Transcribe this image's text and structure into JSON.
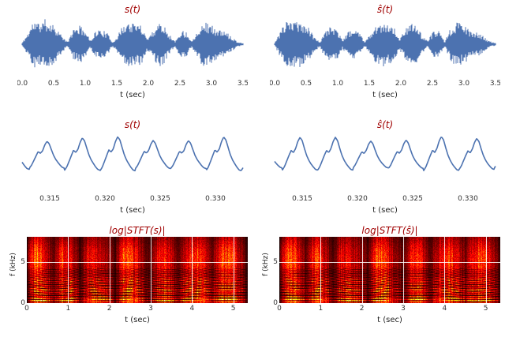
{
  "colors": {
    "waveform_blue": "#4C72B0",
    "title_red": "#a00000",
    "tick_gray": "#333333",
    "background": "#ffffff",
    "spectrogram_colormap": "hot"
  },
  "chart_data": [
    {
      "id": "waveform_s",
      "type": "waveform",
      "title": "s(t)",
      "xlabel": "t (sec)",
      "xlim": [
        0.0,
        3.5
      ],
      "xtick_values": [
        0.0,
        0.5,
        1.0,
        1.5,
        2.0,
        2.5,
        3.0,
        3.5
      ],
      "xtick_labels": [
        "0.0",
        "0.5",
        "1.0",
        "1.5",
        "2.0",
        "2.5",
        "3.0",
        "3.5"
      ],
      "envelope": [
        0.05,
        0.45,
        0.95,
        0.85,
        1.0,
        0.9,
        0.7,
        0.35,
        0.08,
        0.6,
        0.75,
        0.65,
        0.15,
        0.55,
        0.6,
        0.45,
        0.08,
        0.4,
        0.85,
        0.9,
        0.8,
        0.85,
        0.25,
        0.5,
        0.9,
        0.85,
        0.4,
        0.1,
        0.55,
        0.5,
        0.12,
        0.6,
        0.9,
        0.85,
        0.65,
        0.55,
        0.5,
        0.3,
        0.1,
        0.04
      ],
      "seed": 11
    },
    {
      "id": "waveform_s_hat",
      "type": "waveform",
      "title": "ŝ(t)",
      "xlabel": "t (sec)",
      "xlim": [
        0.0,
        3.5
      ],
      "xtick_values": [
        0.0,
        0.5,
        1.0,
        1.5,
        2.0,
        2.5,
        3.0,
        3.5
      ],
      "xtick_labels": [
        "0.0",
        "0.5",
        "1.0",
        "1.5",
        "2.0",
        "2.5",
        "3.0",
        "3.5"
      ],
      "envelope": [
        0.06,
        0.5,
        0.9,
        0.88,
        1.0,
        0.85,
        0.65,
        0.3,
        0.1,
        0.62,
        0.72,
        0.6,
        0.18,
        0.5,
        0.62,
        0.42,
        0.1,
        0.45,
        0.82,
        0.92,
        0.78,
        0.8,
        0.22,
        0.55,
        0.88,
        0.8,
        0.38,
        0.12,
        0.5,
        0.52,
        0.1,
        0.62,
        0.88,
        0.82,
        0.68,
        0.5,
        0.48,
        0.28,
        0.12,
        0.05
      ],
      "seed": 23
    },
    {
      "id": "zoom_s",
      "type": "line",
      "title": "s(t)",
      "xlabel": "t (sec)",
      "xlim": [
        0.3125,
        0.3325
      ],
      "xtick_values": [
        0.315,
        0.32,
        0.325,
        0.33
      ],
      "xtick_labels": [
        "0.315",
        "0.320",
        "0.325",
        "0.330"
      ],
      "period": 0.0032,
      "t0": 0.31315,
      "period_shape": [
        -0.62,
        -0.45,
        -0.18,
        0.1,
        0.38,
        0.28,
        0.42,
        0.78,
        1.0,
        0.86,
        0.5,
        0.15,
        -0.1,
        -0.28,
        -0.45,
        -0.58
      ],
      "seed": 5
    },
    {
      "id": "zoom_s_hat",
      "type": "line",
      "title": "ŝ(t)",
      "xlabel": "t (sec)",
      "xlim": [
        0.3125,
        0.3325
      ],
      "xtick_values": [
        0.315,
        0.32,
        0.325,
        0.33
      ],
      "xtick_labels": [
        "0.315",
        "0.320",
        "0.325",
        "0.330"
      ],
      "period": 0.0032,
      "t0": 0.3132,
      "period_shape": [
        -0.6,
        -0.42,
        -0.15,
        0.12,
        0.36,
        0.26,
        0.45,
        0.8,
        1.0,
        0.84,
        0.46,
        0.12,
        -0.12,
        -0.3,
        -0.44,
        -0.56
      ],
      "seed": 7
    },
    {
      "id": "spectrogram_s",
      "type": "spectrogram",
      "title": "log|STFT(s)|",
      "xlabel": "t (sec)",
      "ylabel": "f (kHz)",
      "xlim": [
        0.0,
        5.35
      ],
      "ylim": [
        0.0,
        8.0
      ],
      "xtick_values": [
        0,
        1,
        2,
        3,
        4,
        5
      ],
      "xtick_labels": [
        "0",
        "1",
        "2",
        "3",
        "4",
        "5"
      ],
      "ytick_values": [
        0,
        5
      ],
      "ytick_labels": [
        "0",
        "5"
      ],
      "colormap": "hot",
      "activity": [
        0.1,
        0.95,
        0.9,
        0.3,
        0.8,
        0.85,
        0.2,
        0.75,
        0.8,
        0.7,
        0.15,
        0.9,
        0.95,
        0.5,
        0.2,
        0.85,
        0.8,
        0.3,
        0.7,
        0.9,
        0.85,
        0.4,
        0.8,
        0.9,
        0.6,
        0.1
      ],
      "highband": [
        0.2,
        0.9,
        0.4,
        0.1,
        0.7,
        0.3,
        0.05,
        0.5,
        0.3,
        0.2,
        0.1,
        0.8,
        0.5,
        0.2,
        0.1,
        0.6,
        0.4,
        0.1,
        0.3,
        0.7,
        0.4,
        0.1,
        0.6,
        0.8,
        0.3,
        0.05
      ],
      "seed": 41
    },
    {
      "id": "spectrogram_s_hat",
      "type": "spectrogram",
      "title": "log|STFT(ŝ)|",
      "xlabel": "t (sec)",
      "ylabel": "f (kHz)",
      "xlim": [
        0.0,
        5.35
      ],
      "ylim": [
        0.0,
        8.0
      ],
      "xtick_values": [
        0,
        1,
        2,
        3,
        4,
        5
      ],
      "xtick_labels": [
        "0",
        "1",
        "2",
        "3",
        "4",
        "5"
      ],
      "ytick_values": [
        0,
        5
      ],
      "ytick_labels": [
        "0",
        "5"
      ],
      "colormap": "hot",
      "activity": [
        0.12,
        0.92,
        0.88,
        0.32,
        0.82,
        0.82,
        0.22,
        0.72,
        0.82,
        0.68,
        0.16,
        0.88,
        0.92,
        0.52,
        0.22,
        0.82,
        0.78,
        0.32,
        0.72,
        0.88,
        0.82,
        0.42,
        0.78,
        0.88,
        0.58,
        0.12
      ],
      "highband": [
        0.22,
        0.85,
        0.42,
        0.12,
        0.68,
        0.32,
        0.06,
        0.48,
        0.32,
        0.22,
        0.12,
        0.78,
        0.48,
        0.22,
        0.12,
        0.58,
        0.42,
        0.12,
        0.32,
        0.68,
        0.42,
        0.12,
        0.58,
        0.78,
        0.32,
        0.06
      ],
      "seed": 57
    }
  ]
}
